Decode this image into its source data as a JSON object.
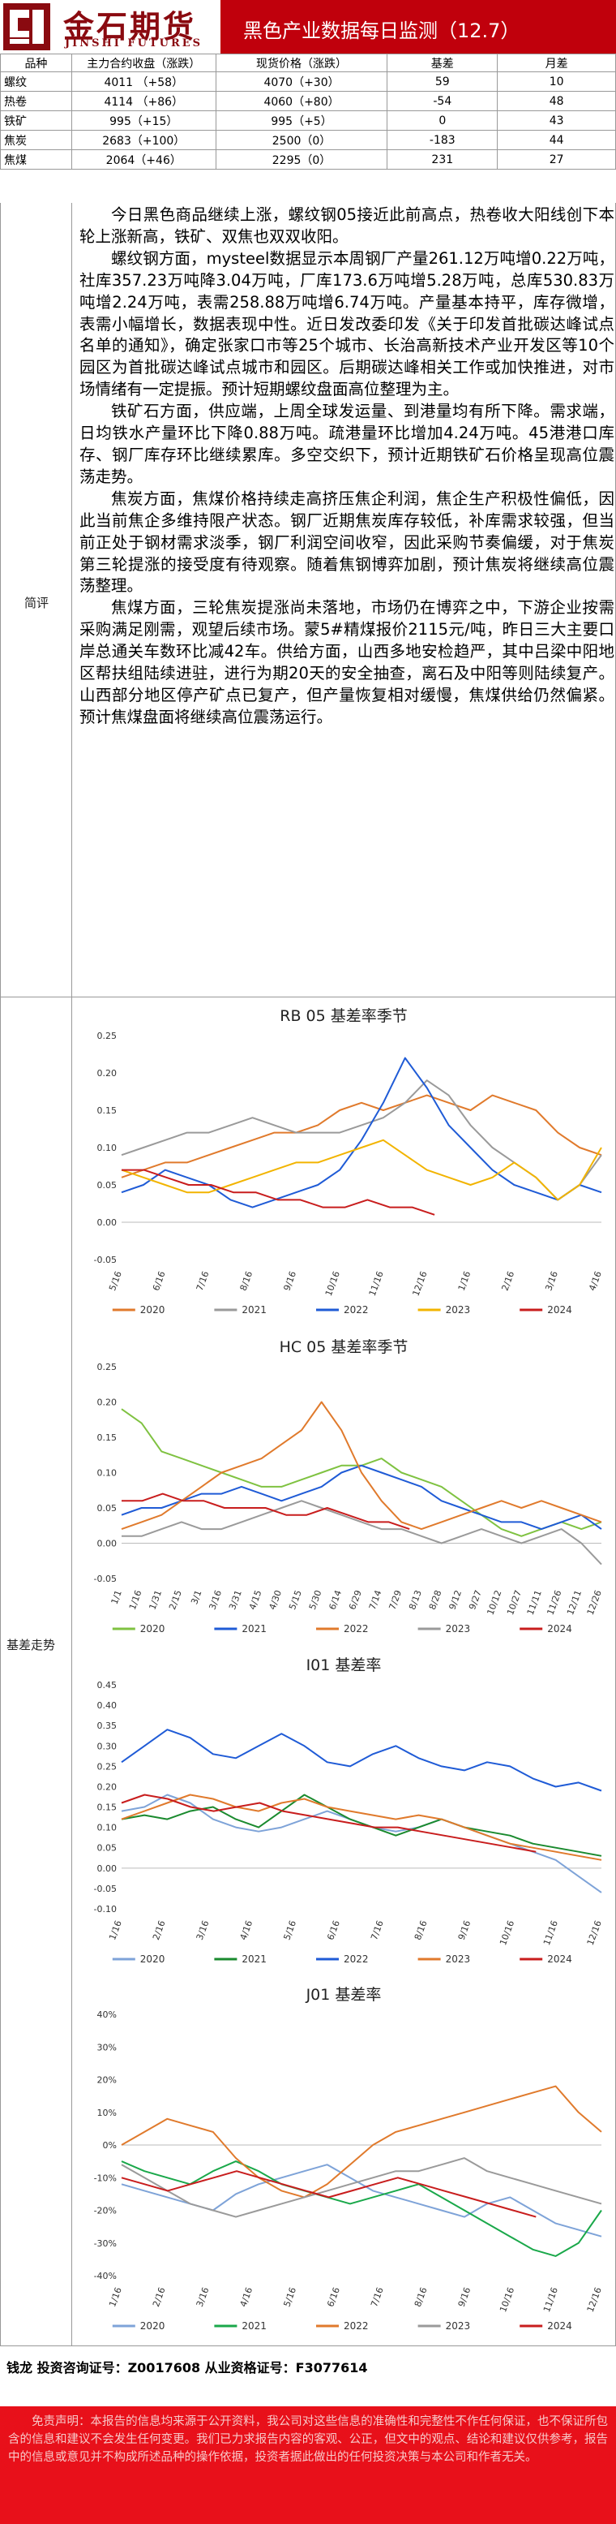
{
  "header": {
    "logo_cn": "金石期货",
    "logo_en": "JINSHI FUTURES",
    "title": "黑色产业数据每日监测（12.7）"
  },
  "price_table": {
    "columns": [
      "品种",
      "主力合约收盘（涨跌）",
      "现货价格（涨跌）",
      "基差",
      "月差"
    ],
    "rows": [
      [
        "螺纹",
        "4011 （+58）",
        "4070（+30）",
        "59",
        "10"
      ],
      [
        "热卷",
        "4114 （+86）",
        "4060（+80）",
        "-54",
        "48"
      ],
      [
        "铁矿",
        "995（+15）",
        "995（+5）",
        "0",
        "43"
      ],
      [
        "焦炭",
        "2683（+100）",
        "2500（0）",
        "-183",
        "44"
      ],
      [
        "焦煤",
        "2064（+46）",
        "2295（0）",
        "231",
        "27"
      ]
    ]
  },
  "commentary": {
    "label": "简评",
    "paragraphs": [
      "今日黑色商品继续上涨，螺纹钢05接近此前高点，热卷收大阳线创下本轮上涨新高，铁矿、双焦也双双收阳。",
      "螺纹钢方面，mysteel数据显示本周钢厂产量261.12万吨增0.22万吨，社库357.23万吨降3.04万吨，厂库173.6万吨增5.28万吨，总库530.83万吨增2.24万吨，表需258.88万吨增6.74万吨。产量基本持平，库存微增，表需小幅增长，数据表现中性。近日发改委印发《关于印发首批碳达峰试点名单的通知》，确定张家口市等25个城市、长治高新技术产业开发区等10个园区为首批碳达峰试点城市和园区。后期碳达峰相关工作或加快推进，对市场情绪有一定提振。预计短期螺纹盘面高位整理为主。",
      "铁矿石方面，供应端，上周全球发运量、到港量均有所下降。需求端，日均铁水产量环比下降0.88万吨。疏港量环比增加4.24万吨。45港港口库存、钢厂库存环比继续累库。多空交织下，预计近期铁矿石价格呈现高位震荡走势。",
      "焦炭方面，焦煤价格持续走高挤压焦企利润，焦企生产积极性偏低，因此当前焦企多维持限产状态。钢厂近期焦炭库存较低，补库需求较强，但当前正处于钢材需求淡季，钢厂利润空间收窄，因此采购节奏偏缓，对于焦炭第三轮提涨的接受度有待观察。随着焦钢博弈加剧，预计焦炭将继续高位震荡整理。",
      "焦煤方面，三轮焦炭提涨尚未落地，市场仍在博弈之中，下游企业按需采购满足刚需，观望后续市场。蒙5#精煤报价2115元/吨，昨日三大主要口岸总通关车数环比减42车。供给方面，山西多地安检趋严，其中吕梁中阳地区帮扶组陆续进驻，进行为期20天的安全抽查，离石及中阳等则陆续复产。山西部分地区停产矿点已复产，但产量恢复相对缓慢，焦煤供给仍然偏紧。预计焦煤盘面将继续高位震荡运行。"
    ]
  },
  "basis_label": "基差走势",
  "chart_data": [
    {
      "type": "line",
      "title": "RB 05 基差率季节",
      "yticks": [
        "0.25",
        "0.20",
        "0.15",
        "0.10",
        "0.05",
        "0.00",
        "-0.05"
      ],
      "ylim": [
        -0.05,
        0.25
      ],
      "xticks": [
        "5/16",
        "6/16",
        "7/16",
        "8/16",
        "9/16",
        "10/16",
        "11/16",
        "12/16",
        "1/16",
        "2/16",
        "3/16",
        "4/16"
      ],
      "grid": false,
      "legend": "bottom",
      "series": [
        {
          "name": "2020",
          "color": "#e07a2c",
          "values": [
            0.06,
            0.07,
            0.08,
            0.08,
            0.09,
            0.1,
            0.11,
            0.12,
            0.12,
            0.13,
            0.15,
            0.16,
            0.15,
            0.16,
            0.17,
            0.16,
            0.15,
            0.17,
            0.16,
            0.15,
            0.12,
            0.1,
            0.09
          ]
        },
        {
          "name": "2021",
          "color": "#9a9a9a",
          "values": [
            0.09,
            0.1,
            0.11,
            0.12,
            0.12,
            0.13,
            0.14,
            0.13,
            0.12,
            0.12,
            0.12,
            0.13,
            0.14,
            0.16,
            0.19,
            0.17,
            0.13,
            0.1,
            0.08,
            0.06,
            0.03,
            0.05,
            0.09
          ]
        },
        {
          "name": "2022",
          "color": "#1f5bd6",
          "values": [
            0.04,
            0.05,
            0.07,
            0.06,
            0.05,
            0.03,
            0.02,
            0.03,
            0.04,
            0.05,
            0.07,
            0.11,
            0.16,
            0.22,
            0.18,
            0.13,
            0.1,
            0.07,
            0.05,
            0.04,
            0.03,
            0.05,
            0.04
          ]
        },
        {
          "name": "2023",
          "color": "#f2b400",
          "values": [
            0.07,
            0.06,
            0.05,
            0.04,
            0.04,
            0.05,
            0.06,
            0.07,
            0.08,
            0.08,
            0.09,
            0.1,
            0.11,
            0.09,
            0.07,
            0.06,
            0.05,
            0.06,
            0.08,
            0.06,
            0.03,
            0.05,
            0.1
          ]
        },
        {
          "name": "2024",
          "color": "#c81d1d",
          "values": [
            0.07,
            0.07,
            0.06,
            0.05,
            0.05,
            0.04,
            0.04,
            0.03,
            0.03,
            0.02,
            0.02,
            0.03,
            0.02,
            0.02,
            0.01
          ]
        }
      ]
    },
    {
      "type": "line",
      "title": "HC 05 基差率季节",
      "yticks": [
        "0.25",
        "0.20",
        "0.15",
        "0.10",
        "0.05",
        "0.00",
        "-0.05"
      ],
      "ylim": [
        -0.05,
        0.25
      ],
      "xticks": [
        "1/1",
        "1/16",
        "1/31",
        "2/15",
        "3/1",
        "3/16",
        "3/31",
        "4/15",
        "4/30",
        "5/15",
        "5/30",
        "6/14",
        "6/29",
        "7/14",
        "7/29",
        "8/13",
        "8/28",
        "9/12",
        "9/27",
        "10/12",
        "10/27",
        "11/11",
        "11/26",
        "12/11",
        "12/26"
      ],
      "grid": false,
      "legend": "bottom",
      "series": [
        {
          "name": "2020",
          "color": "#7fc241",
          "values": [
            0.19,
            0.17,
            0.13,
            0.12,
            0.11,
            0.1,
            0.09,
            0.08,
            0.08,
            0.09,
            0.1,
            0.11,
            0.11,
            0.12,
            0.1,
            0.09,
            0.08,
            0.06,
            0.04,
            0.02,
            0.01,
            0.02,
            0.03,
            0.02,
            0.03
          ]
        },
        {
          "name": "2021",
          "color": "#1f5bd6",
          "values": [
            0.04,
            0.05,
            0.05,
            0.06,
            0.07,
            0.07,
            0.08,
            0.07,
            0.06,
            0.07,
            0.08,
            0.1,
            0.11,
            0.1,
            0.09,
            0.08,
            0.06,
            0.05,
            0.04,
            0.03,
            0.03,
            0.02,
            0.03,
            0.04,
            0.02
          ]
        },
        {
          "name": "2022",
          "color": "#e07a2c",
          "values": [
            0.02,
            0.03,
            0.04,
            0.06,
            0.08,
            0.1,
            0.11,
            0.12,
            0.14,
            0.16,
            0.2,
            0.16,
            0.1,
            0.06,
            0.03,
            0.02,
            0.03,
            0.04,
            0.05,
            0.06,
            0.05,
            0.06,
            0.05,
            0.04,
            0.03
          ]
        },
        {
          "name": "2023",
          "color": "#9a9a9a",
          "values": [
            0.01,
            0.01,
            0.02,
            0.03,
            0.02,
            0.02,
            0.03,
            0.04,
            0.05,
            0.06,
            0.05,
            0.04,
            0.03,
            0.02,
            0.02,
            0.01,
            0.0,
            0.01,
            0.02,
            0.01,
            0.0,
            0.01,
            0.02,
            0.0,
            -0.03
          ]
        },
        {
          "name": "2024",
          "color": "#c81d1d",
          "values": [
            0.06,
            0.06,
            0.07,
            0.06,
            0.06,
            0.05,
            0.05,
            0.05,
            0.04,
            0.04,
            0.05,
            0.04,
            0.03,
            0.03,
            0.02
          ]
        }
      ]
    },
    {
      "type": "line",
      "title": "I01 基差率",
      "yticks": [
        "0.45",
        "0.40",
        "0.35",
        "0.30",
        "0.25",
        "0.20",
        "0.15",
        "0.10",
        "0.05",
        "0.00",
        "-0.05",
        "-0.10"
      ],
      "ylim": [
        -0.1,
        0.45
      ],
      "xticks": [
        "1/16",
        "2/16",
        "3/16",
        "4/16",
        "5/16",
        "6/16",
        "7/16",
        "8/16",
        "9/16",
        "10/16",
        "11/16",
        "12/16"
      ],
      "grid": false,
      "legend": "bottom",
      "series": [
        {
          "name": "2020",
          "color": "#7ea3d8",
          "values": [
            0.14,
            0.15,
            0.18,
            0.16,
            0.12,
            0.1,
            0.09,
            0.1,
            0.12,
            0.14,
            0.12,
            0.1,
            0.09,
            0.1,
            0.12,
            0.1,
            0.08,
            0.06,
            0.04,
            0.02,
            -0.02,
            -0.06
          ]
        },
        {
          "name": "2021",
          "color": "#1a8a2e",
          "values": [
            0.12,
            0.13,
            0.12,
            0.14,
            0.15,
            0.12,
            0.1,
            0.14,
            0.18,
            0.15,
            0.12,
            0.1,
            0.08,
            0.1,
            0.12,
            0.1,
            0.09,
            0.08,
            0.06,
            0.05,
            0.04,
            0.03
          ]
        },
        {
          "name": "2022",
          "color": "#1f5bd6",
          "values": [
            0.26,
            0.3,
            0.34,
            0.32,
            0.28,
            0.27,
            0.3,
            0.33,
            0.3,
            0.26,
            0.25,
            0.28,
            0.3,
            0.27,
            0.25,
            0.24,
            0.26,
            0.25,
            0.22,
            0.2,
            0.21,
            0.19
          ]
        },
        {
          "name": "2023",
          "color": "#e07a2c",
          "values": [
            0.12,
            0.14,
            0.16,
            0.18,
            0.17,
            0.15,
            0.14,
            0.16,
            0.17,
            0.15,
            0.14,
            0.13,
            0.12,
            0.13,
            0.12,
            0.1,
            0.08,
            0.06,
            0.05,
            0.04,
            0.03,
            0.02
          ]
        },
        {
          "name": "2024",
          "color": "#c81d1d",
          "values": [
            0.16,
            0.18,
            0.17,
            0.15,
            0.14,
            0.15,
            0.16,
            0.14,
            0.13,
            0.12,
            0.11,
            0.1,
            0.1,
            0.09,
            0.08,
            0.07,
            0.06,
            0.05,
            0.04
          ]
        }
      ]
    },
    {
      "type": "line",
      "title": "J01 基差率",
      "yticks": [
        "40%",
        "30%",
        "20%",
        "10%",
        "0%",
        "-10%",
        "-20%",
        "-30%",
        "-40%"
      ],
      "ylim": [
        -40,
        40
      ],
      "xticks": [
        "1/16",
        "2/16",
        "3/16",
        "4/16",
        "5/16",
        "6/16",
        "7/16",
        "8/16",
        "9/16",
        "10/16",
        "11/16",
        "12/16"
      ],
      "grid": false,
      "legend": "bottom",
      "series": [
        {
          "name": "2020",
          "color": "#7ea3d8",
          "values": [
            -12,
            -14,
            -16,
            -18,
            -20,
            -15,
            -12,
            -10,
            -8,
            -6,
            -10,
            -14,
            -16,
            -18,
            -20,
            -22,
            -18,
            -16,
            -20,
            -24,
            -26,
            -28
          ]
        },
        {
          "name": "2021",
          "color": "#1aa84a",
          "values": [
            -5,
            -8,
            -10,
            -12,
            -8,
            -5,
            -8,
            -12,
            -14,
            -16,
            -18,
            -16,
            -14,
            -12,
            -16,
            -20,
            -24,
            -28,
            -32,
            -34,
            -30,
            -20
          ]
        },
        {
          "name": "2022",
          "color": "#e07a2c",
          "values": [
            0,
            4,
            8,
            6,
            4,
            -4,
            -10,
            -14,
            -16,
            -12,
            -6,
            0,
            4,
            6,
            8,
            10,
            12,
            14,
            16,
            18,
            10,
            4
          ]
        },
        {
          "name": "2023",
          "color": "#9a9a9a",
          "values": [
            -6,
            -10,
            -14,
            -18,
            -20,
            -22,
            -20,
            -18,
            -16,
            -14,
            -12,
            -10,
            -8,
            -8,
            -6,
            -4,
            -8,
            -10,
            -12,
            -14,
            -16,
            -18
          ]
        },
        {
          "name": "2024",
          "color": "#c81d1d",
          "values": [
            -10,
            -12,
            -14,
            -12,
            -10,
            -8,
            -10,
            -12,
            -14,
            -16,
            -14,
            -12,
            -10,
            -12,
            -14,
            -16,
            -18,
            -20,
            -22
          ]
        }
      ]
    }
  ],
  "footer": {
    "contact": "钱龙 投资咨询证号：Z0017608 从业资格证号：F3077614",
    "disclaimer": "免责声明：本报告的信息均来源于公开资料，我公司对这些信息的准确性和完整性不作任何保证，也不保证所包含的信息和建议不会发生任何变更。我们已力求报告内容的客观、公正，但文中的观点、结论和建议仅供参考，报告中的信息或意见并不构成所述品种的操作依据，投资者据此做出的任何投资决策与本公司和作者无关。"
  }
}
